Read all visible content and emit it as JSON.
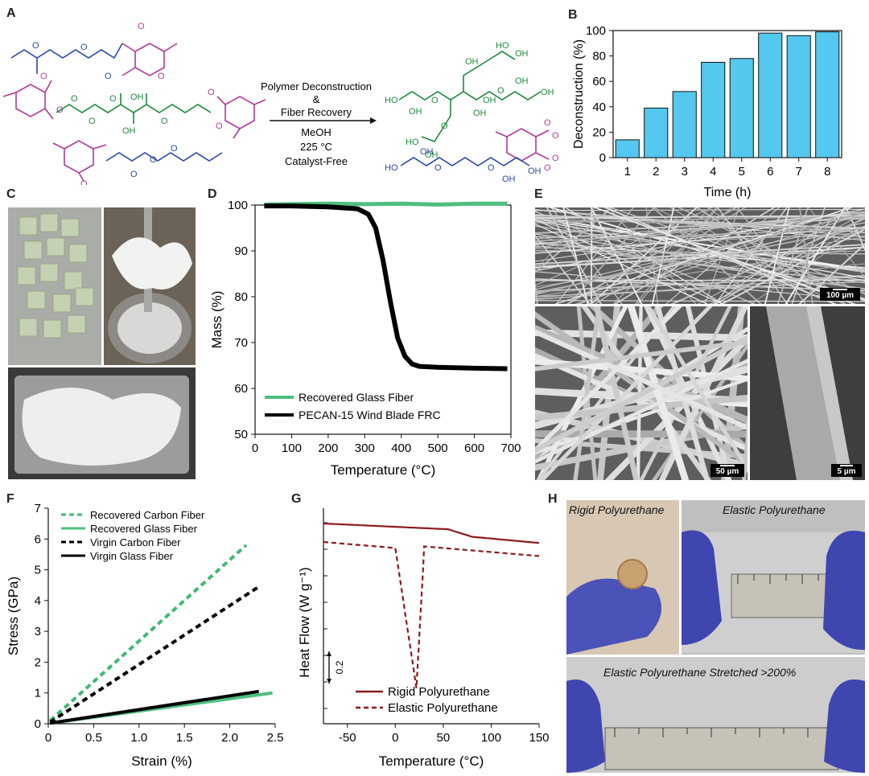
{
  "panels": {
    "A": {
      "letter": "A",
      "arrow_lines": [
        "Polymer Deconstruction",
        "&",
        "Fiber Recovery",
        "MeOH",
        "225 °C",
        "Catalyst-Free"
      ],
      "colors": {
        "pink": "#b0389a",
        "blue": "#2a4aa8",
        "green": "#1e8a3c"
      }
    },
    "B": {
      "letter": "B"
    },
    "C": {
      "letter": "C"
    },
    "D": {
      "letter": "D"
    },
    "E": {
      "letter": "E",
      "scale_top": "100 µm",
      "scale_left": "50 µm",
      "scale_right": "5 µm"
    },
    "F": {
      "letter": "F"
    },
    "G": {
      "letter": "G"
    },
    "H": {
      "letter": "H",
      "caption_rigid": "Rigid Polyurethane",
      "caption_elastic": "Elastic Polyurethane",
      "caption_stretched": "Elastic Polyurethane Stretched >200%"
    }
  },
  "chart_data": [
    {
      "id": "B",
      "type": "bar",
      "categories": [
        "1",
        "2",
        "3",
        "4",
        "5",
        "6",
        "7",
        "8"
      ],
      "values": [
        14,
        39,
        52,
        75,
        78,
        98,
        96,
        99
      ],
      "xlabel": "Time (h)",
      "ylabel": "Deconstruction (%)",
      "ylim": [
        0,
        100
      ],
      "yticks": [
        "0",
        "20",
        "40",
        "60",
        "80",
        "100"
      ],
      "bar_color": "#54c8ee"
    },
    {
      "id": "D",
      "type": "line",
      "xlabel": "Temperature (°C)",
      "ylabel": "Mass (%)",
      "xlim": [
        0,
        700
      ],
      "ylim": [
        50,
        100
      ],
      "xticks": [
        "0",
        "100",
        "200",
        "300",
        "400",
        "500",
        "600",
        "700"
      ],
      "yticks": [
        "50",
        "60",
        "70",
        "80",
        "90",
        "100"
      ],
      "legend": "bottom-left",
      "series": [
        {
          "name": "Recovered Glass Fiber",
          "color": "#4dbf7e",
          "x": [
            25,
            100,
            200,
            300,
            400,
            500,
            600,
            690
          ],
          "y": [
            100.1,
            100.2,
            100.3,
            100.2,
            100.3,
            100.1,
            100.3,
            100.3
          ]
        },
        {
          "name": "PECAN-15 Wind Blade FRC",
          "color": "#000000",
          "x": [
            25,
            100,
            200,
            280,
            310,
            330,
            350,
            370,
            390,
            410,
            430,
            450,
            500,
            600,
            690
          ],
          "y": [
            99.8,
            99.8,
            99.6,
            99.2,
            98.0,
            95.0,
            88.0,
            79.0,
            71.0,
            67.0,
            65.3,
            64.8,
            64.6,
            64.4,
            64.3
          ]
        }
      ]
    },
    {
      "id": "F",
      "type": "line",
      "xlabel": "Strain (%)",
      "ylabel": "Stress (GPa)",
      "xlim": [
        0,
        2.5
      ],
      "ylim": [
        0,
        7
      ],
      "xticks": [
        "0",
        "0.5",
        "1.0",
        "1.5",
        "2.0",
        "2.5"
      ],
      "yticks": [
        "0",
        "1",
        "2",
        "3",
        "4",
        "5",
        "6",
        "7"
      ],
      "legend": "top-left",
      "series": [
        {
          "name": "Recovered Carbon Fiber",
          "color": "#3fb874",
          "dash": true,
          "x": [
            0.02,
            2.18
          ],
          "y": [
            0.1,
            5.8
          ]
        },
        {
          "name": "Recovered Glass Fiber",
          "color": "#4dbf7e",
          "dash": false,
          "x": [
            0.02,
            2.47
          ],
          "y": [
            0.02,
            1.0
          ]
        },
        {
          "name": "Virgin Carbon Fiber",
          "color": "#000000",
          "dash": true,
          "x": [
            0.02,
            2.32
          ],
          "y": [
            0.05,
            4.45
          ]
        },
        {
          "name": "Virgin Glass Fiber",
          "color": "#000000",
          "dash": false,
          "x": [
            0.02,
            2.32
          ],
          "y": [
            0.02,
            1.05
          ]
        }
      ]
    },
    {
      "id": "G",
      "type": "line",
      "xlabel": "Temperature (°C)",
      "ylabel": "Heat Flow (W g⁻¹)",
      "xlim": [
        -75,
        150
      ],
      "xticks": [
        "-50",
        "0",
        "50",
        "100",
        "150"
      ],
      "scale_label": "0.2",
      "legend": "bottom-right",
      "series": [
        {
          "name": "Rigid Polyurethane",
          "color": "#8b1a1a",
          "dash": false
        },
        {
          "name": "Elastic Polyurethane",
          "color": "#8b1a1a",
          "dash": true
        }
      ]
    }
  ]
}
